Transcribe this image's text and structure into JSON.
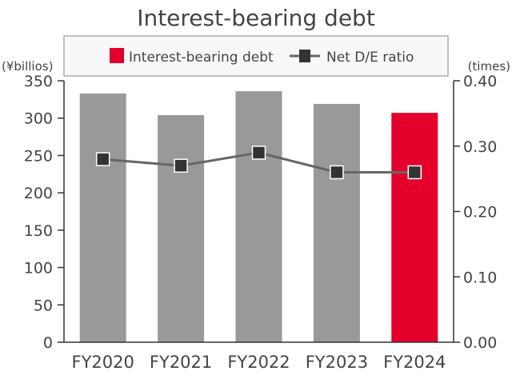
{
  "chart_data": {
    "type": "bar+line",
    "title": "Interest-bearing debt",
    "categories": [
      "FY2020",
      "FY2021",
      "FY2022",
      "FY2023",
      "FY2024"
    ],
    "series": [
      {
        "name": "Interest-bearing debt",
        "type": "bar",
        "axis": "left",
        "values": [
          333,
          304,
          336,
          319,
          307
        ],
        "color": "#999999",
        "highlight_color": "#e4002b",
        "highlight_index": 4
      },
      {
        "name": "Net D/E ratio",
        "type": "line",
        "axis": "right",
        "values": [
          0.28,
          0.27,
          0.29,
          0.26,
          0.26
        ],
        "color": "#333333",
        "line_color": "#666666"
      }
    ],
    "left_axis": {
      "label": "(¥billios)",
      "ylim": [
        0,
        350
      ],
      "ticks": [
        0,
        50,
        100,
        150,
        200,
        250,
        300,
        350
      ]
    },
    "right_axis": {
      "label": "(times)",
      "ylim": [
        0,
        0.4
      ],
      "ticks": [
        "0.00",
        "0.10",
        "0.20",
        "0.30",
        "0.40"
      ]
    },
    "legend": {
      "position": "top",
      "items": [
        "Interest-bearing debt",
        "Net D/E ratio"
      ]
    },
    "grid": false
  }
}
